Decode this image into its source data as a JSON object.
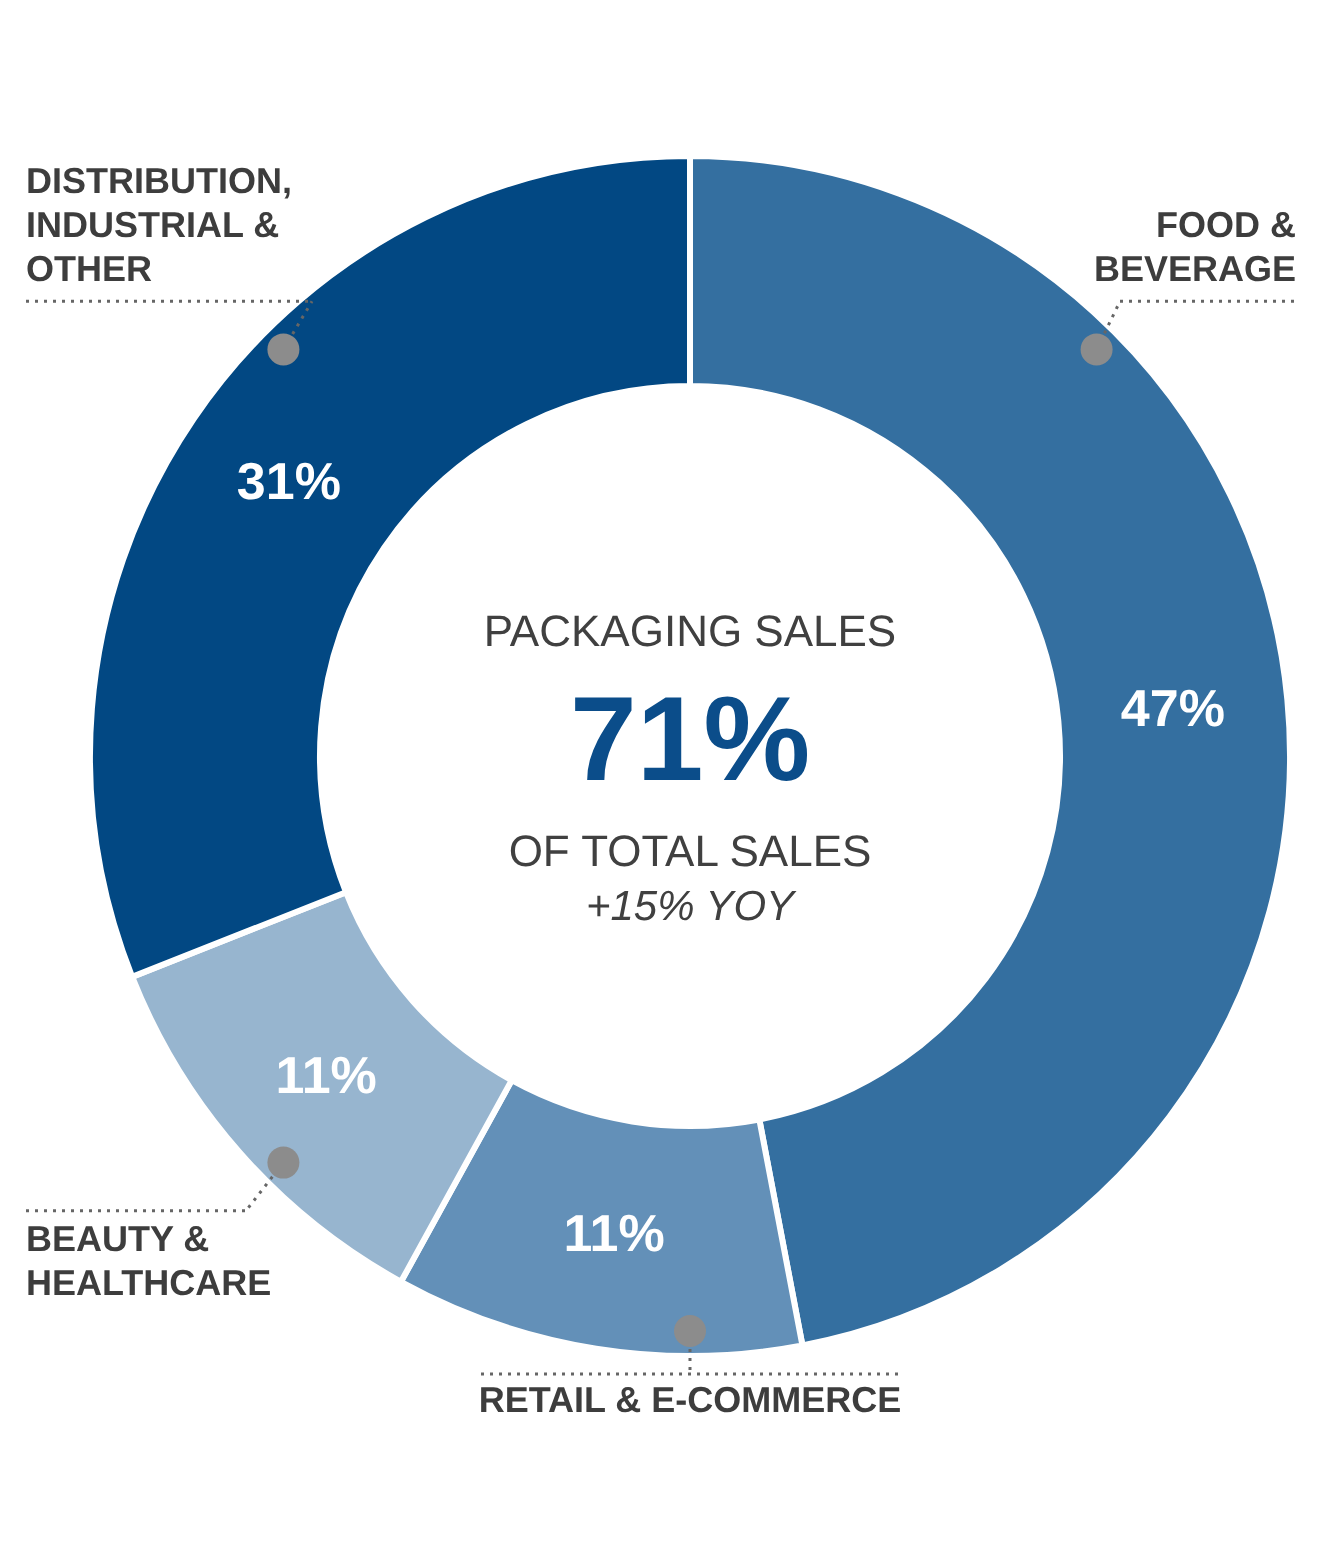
{
  "chart_data": {
    "type": "donut",
    "categories": [
      "FOOD & BEVERAGE",
      "RETAIL & E-COMMERCE",
      "BEAUTY & HEALTHCARE",
      "DISTRIBUTION, INDUSTRIAL & OTHER"
    ],
    "values": [
      47,
      11,
      11,
      31
    ],
    "colors": [
      "#346fa0",
      "#6390b8",
      "#97b5cf",
      "#024883"
    ],
    "value_labels": [
      "47%",
      "11%",
      "11%",
      "31%"
    ],
    "annotations": [
      "PACKAGING SALES",
      "71%",
      "OF TOTAL SALES",
      "+15% YOY"
    ]
  }
}
